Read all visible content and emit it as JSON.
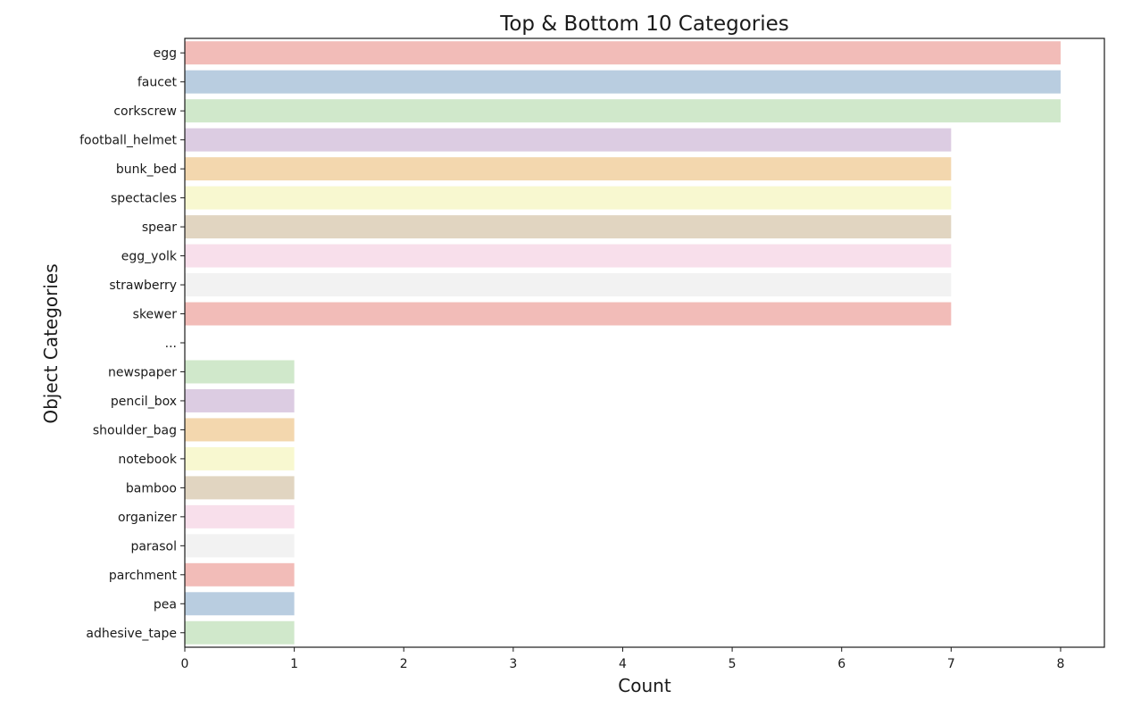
{
  "chart_data": {
    "type": "bar",
    "orientation": "horizontal",
    "title": "Top & Bottom 10 Categories",
    "xlabel": "Count",
    "ylabel": "Object Categories",
    "xlim": [
      0,
      8.4
    ],
    "xticks": [
      0,
      1,
      2,
      3,
      4,
      5,
      6,
      7,
      8
    ],
    "grid": false,
    "legend": "none",
    "categories": [
      "egg",
      "faucet",
      "corkscrew",
      "football_helmet",
      "bunk_bed",
      "spectacles",
      "spear",
      "egg_yolk",
      "strawberry",
      "skewer",
      "...",
      "newspaper",
      "pencil_box",
      "shoulder_bag",
      "notebook",
      "bamboo",
      "organizer",
      "parasol",
      "parchment",
      "pea",
      "adhesive_tape"
    ],
    "values": [
      8,
      8,
      8,
      7,
      7,
      7,
      7,
      7,
      7,
      7,
      null,
      1,
      1,
      1,
      1,
      1,
      1,
      1,
      1,
      1,
      1
    ],
    "colors": [
      "#f2bcb8",
      "#b9cde0",
      "#d0e8cb",
      "#dccce2",
      "#f3d7ae",
      "#f8f8d0",
      "#e1d5c1",
      "#f8dfeb",
      "#f2f2f2",
      "#f2bcb8",
      "#b9cde0",
      "#d0e8cb",
      "#dccce2",
      "#f3d7ae",
      "#f8f8d0",
      "#e1d5c1",
      "#f8dfeb",
      "#f2f2f2",
      "#f2bcb8",
      "#b9cde0",
      "#d0e8cb"
    ]
  }
}
